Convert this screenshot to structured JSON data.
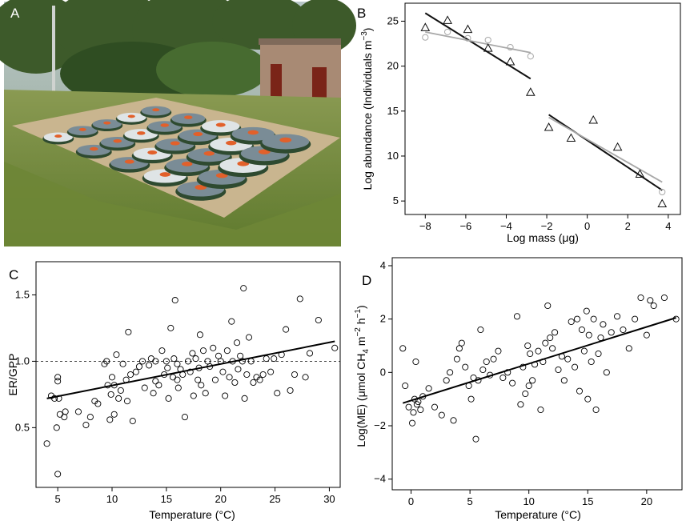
{
  "panels": {
    "a": {
      "letter": "A"
    },
    "b": {
      "letter": "B"
    },
    "c": {
      "letter": "C"
    },
    "d": {
      "letter": "D"
    }
  },
  "colors": {
    "black": "#111111",
    "gray": "#a8a8a8",
    "water": "#7a8c96",
    "grass": "#6f8a3c",
    "gravel": "#c9b58f",
    "building": "#8a6a58",
    "tree": "#3d5a2a"
  },
  "chart_data": [
    {
      "panel": "B",
      "type": "scatter",
      "xlabel_parts": [
        "Log mass (",
        "μ",
        "g)"
      ],
      "ylabel_parts": [
        "Log abundance (Individuals m",
        "−3",
        ")"
      ],
      "xlim": [
        -9,
        4.6
      ],
      "ylim": [
        3.5,
        27
      ],
      "xticks": [
        -8,
        -6,
        -4,
        -2,
        0,
        2,
        4
      ],
      "xtick_labels": [
        "−8",
        "−6",
        "−4",
        "−2",
        "0",
        "2",
        "4"
      ],
      "yticks": [
        5,
        10,
        15,
        20,
        25
      ],
      "ytick_labels": [
        "5",
        "10",
        "15",
        "20",
        "25"
      ],
      "series": [
        {
          "marker": "triangle",
          "color": "black",
          "x": [
            -8,
            -6.9,
            -5.9,
            -4.9,
            -3.8,
            -2.8,
            -1.9,
            -0.8,
            0.3,
            1.5,
            2.6,
            3.7
          ],
          "y": [
            24.3,
            25.1,
            24.1,
            22.0,
            20.5,
            17.1,
            13.2,
            12.0,
            14.0,
            11.0,
            8.0,
            4.7
          ]
        },
        {
          "marker": "circle",
          "color": "gray",
          "x": [
            -8,
            -6.9,
            -5.9,
            -4.9,
            -3.8,
            -2.8,
            3.7
          ],
          "y": [
            23.2,
            23.8,
            23.1,
            22.9,
            22.1,
            21.1,
            6.0
          ]
        }
      ],
      "fit_lines": [
        {
          "color": "black",
          "x": [
            -8,
            -2.8
          ],
          "y": [
            25.9,
            18.6
          ]
        },
        {
          "color": "gray",
          "x": [
            -8,
            -2.8
          ],
          "y": [
            23.8,
            21.5
          ]
        },
        {
          "color": "black",
          "x": [
            -1.9,
            3.7
          ],
          "y": [
            14.6,
            6.2
          ]
        },
        {
          "color": "gray",
          "x": [
            -1.9,
            3.7
          ],
          "y": [
            14.3,
            7.1
          ]
        }
      ]
    },
    {
      "panel": "C",
      "type": "scatter",
      "xlabel": "Temperature (°C)",
      "ylabel": "ER/GPP",
      "xlim": [
        3,
        31
      ],
      "ylim": [
        0.05,
        1.75
      ],
      "xticks": [
        5,
        10,
        15,
        20,
        25,
        30
      ],
      "xtick_labels": [
        "5",
        "10",
        "15",
        "20",
        "25",
        "30"
      ],
      "yticks": [
        0.5,
        1.0,
        1.5
      ],
      "ytick_labels": [
        "0.5",
        "1.0",
        "1.5"
      ],
      "reference_line": {
        "y": 1.0,
        "style": "dashed"
      },
      "fit_line": {
        "x": [
          4,
          30.5
        ],
        "y": [
          0.72,
          1.15
        ]
      },
      "points": {
        "x": [
          4.0,
          4.4,
          4.7,
          5.0,
          5.0,
          5.0,
          4.9,
          5.1,
          5.2,
          5.6,
          5.7,
          6.9,
          7.6,
          8.0,
          8.4,
          8.7,
          9.3,
          9.5,
          9.6,
          9.8,
          9.9,
          10.0,
          10.2,
          10.2,
          10.4,
          10.6,
          10.8,
          11.0,
          11.3,
          11.4,
          11.5,
          11.7,
          11.9,
          12.2,
          12.5,
          12.8,
          13.0,
          13.4,
          13.6,
          13.8,
          14.0,
          14.0,
          14.3,
          14.6,
          14.8,
          15.0,
          15.1,
          15.2,
          15.4,
          15.6,
          15.7,
          15.8,
          16.0,
          16.0,
          16.1,
          16.3,
          16.5,
          16.7,
          17.0,
          17.2,
          17.4,
          17.5,
          17.7,
          17.9,
          18.0,
          18.1,
          18.2,
          18.4,
          18.6,
          18.8,
          19.0,
          19.3,
          19.5,
          19.8,
          20.0,
          20.2,
          20.4,
          20.6,
          20.8,
          21.0,
          21.1,
          21.3,
          21.5,
          21.6,
          21.8,
          22.0,
          22.1,
          22.2,
          22.4,
          22.6,
          22.8,
          23.0,
          23.3,
          23.6,
          23.9,
          24.2,
          24.6,
          24.9,
          25.2,
          25.6,
          26.0,
          26.4,
          26.8,
          27.3,
          27.8,
          28.2,
          29.0,
          30.5
        ],
        "y": [
          0.38,
          0.74,
          0.72,
          0.88,
          0.85,
          0.15,
          0.5,
          0.72,
          0.6,
          0.58,
          0.62,
          0.62,
          0.52,
          0.58,
          0.7,
          0.68,
          0.98,
          1.0,
          0.82,
          0.56,
          0.75,
          0.88,
          0.82,
          0.6,
          1.05,
          0.72,
          0.78,
          0.98,
          0.86,
          0.7,
          1.22,
          0.9,
          0.55,
          0.92,
          0.96,
          1.0,
          0.8,
          0.97,
          1.02,
          0.76,
          1.0,
          0.85,
          0.82,
          1.08,
          0.9,
          1.0,
          0.95,
          0.72,
          1.25,
          0.88,
          1.02,
          1.46,
          0.86,
          0.98,
          0.8,
          0.94,
          0.9,
          0.58,
          1.0,
          0.92,
          1.06,
          0.74,
          1.02,
          0.86,
          0.95,
          1.2,
          0.82,
          1.08,
          0.76,
          1.0,
          0.96,
          1.1,
          0.86,
          1.04,
          1.0,
          0.92,
          0.74,
          1.08,
          0.88,
          1.3,
          1.0,
          0.84,
          1.14,
          0.94,
          1.04,
          1.0,
          1.55,
          0.72,
          0.9,
          1.18,
          1.0,
          0.84,
          0.88,
          0.86,
          0.9,
          1.02,
          0.92,
          1.02,
          0.76,
          1.05,
          1.24,
          0.78,
          0.9,
          1.47,
          0.88,
          1.06,
          1.31,
          1.1
        ]
      }
    },
    {
      "panel": "D",
      "type": "scatter",
      "xlabel": "Temperature (°C)",
      "ylabel_parts": [
        "Log(ME) (",
        "μ",
        "mol CH",
        "4",
        " m",
        "−2",
        " h",
        "−1",
        ")"
      ],
      "xlim": [
        -1.6,
        23
      ],
      "ylim": [
        -4.4,
        4.3
      ],
      "xticks": [
        0,
        5,
        10,
        15,
        20
      ],
      "xtick_labels": [
        "0",
        "5",
        "10",
        "15",
        "20"
      ],
      "yticks": [
        -4,
        -2,
        0,
        2,
        4
      ],
      "ytick_labels": [
        "−4",
        "−2",
        "0",
        "2",
        "4"
      ],
      "fit_line": {
        "x": [
          -0.7,
          22.5
        ],
        "y": [
          -1.15,
          2.05
        ]
      },
      "points": {
        "x": [
          -0.7,
          -0.5,
          -0.2,
          0.1,
          0.2,
          0.3,
          0.4,
          0.5,
          0.6,
          0.8,
          1.0,
          1.5,
          2.0,
          2.6,
          3.0,
          3.3,
          3.6,
          3.9,
          4.1,
          4.3,
          4.6,
          4.9,
          5.1,
          5.3,
          5.5,
          5.7,
          5.9,
          6.1,
          6.4,
          6.7,
          7.0,
          7.4,
          7.8,
          8.2,
          8.6,
          9.0,
          9.3,
          9.5,
          9.7,
          9.9,
          10.0,
          10.1,
          10.3,
          10.5,
          10.8,
          11.0,
          11.2,
          11.4,
          11.6,
          11.8,
          12.0,
          12.2,
          12.5,
          12.8,
          13.0,
          13.3,
          13.6,
          13.9,
          14.1,
          14.3,
          14.5,
          14.7,
          14.9,
          15.0,
          15.1,
          15.3,
          15.5,
          15.7,
          15.9,
          16.1,
          16.3,
          16.6,
          17.0,
          17.5,
          18.0,
          18.5,
          19.0,
          19.5,
          20.0,
          20.3,
          20.6,
          21.5,
          22.5
        ],
        "y": [
          0.9,
          -0.5,
          -1.3,
          -1.9,
          -1.5,
          -1.0,
          0.4,
          -1.2,
          -1.1,
          -1.4,
          -0.9,
          -0.6,
          -1.3,
          -1.6,
          -0.3,
          0.0,
          -1.8,
          0.5,
          0.9,
          1.1,
          0.2,
          -0.5,
          -1.0,
          -0.2,
          -2.5,
          -0.3,
          1.6,
          0.1,
          0.4,
          -0.1,
          0.5,
          0.8,
          -0.2,
          0.0,
          -0.4,
          2.1,
          -1.2,
          0.2,
          -0.8,
          1.0,
          -0.5,
          0.7,
          -0.3,
          0.3,
          0.8,
          -1.4,
          0.4,
          1.1,
          2.5,
          1.3,
          0.9,
          1.5,
          0.1,
          0.6,
          -0.3,
          0.5,
          1.9,
          0.2,
          2.0,
          -0.7,
          1.6,
          0.8,
          2.3,
          -1.0,
          1.4,
          0.4,
          2.0,
          -1.4,
          0.7,
          1.3,
          1.8,
          0.0,
          1.5,
          2.1,
          1.6,
          0.9,
          2.0,
          2.8,
          1.4,
          2.7,
          2.5,
          2.8,
          2.0
        ]
      }
    }
  ]
}
